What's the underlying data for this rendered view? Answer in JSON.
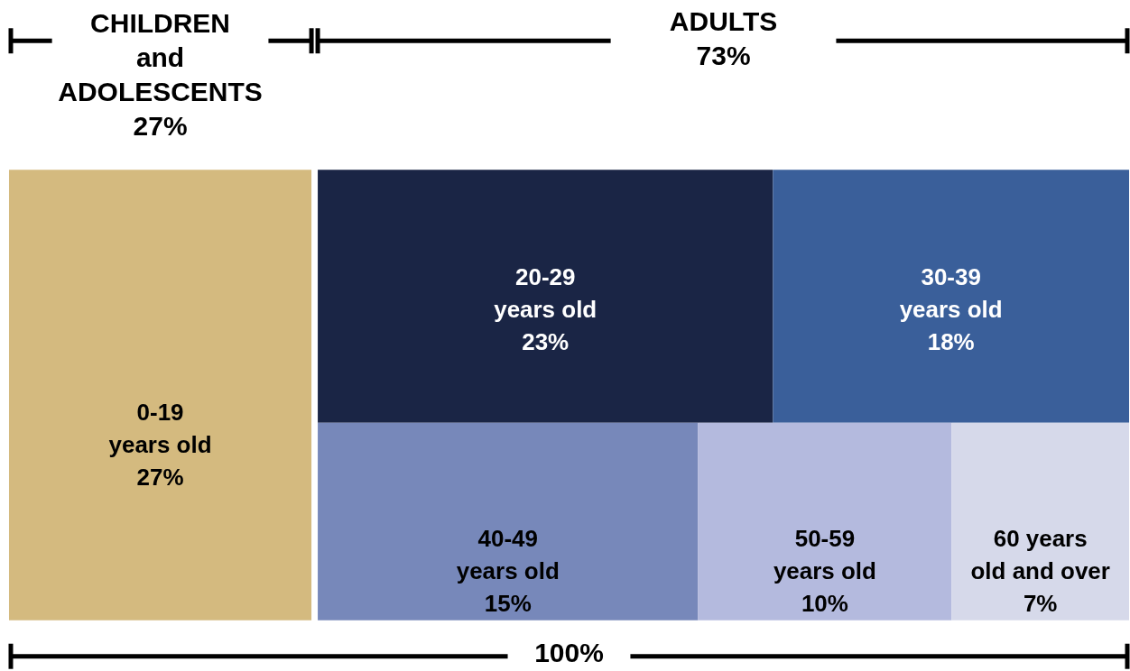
{
  "chart_data": {
    "type": "other",
    "categories": [
      "0-19\nyears old",
      "20-29\nyears old",
      "30-39\nyears old",
      "40-49\nyears old",
      "50-59\nyears old",
      "60 years\nold and over"
    ],
    "values": [
      27,
      23,
      18,
      15,
      10,
      7
    ],
    "value_labels": [
      "27%",
      "23%",
      "18%",
      "15%",
      "10%",
      "7%"
    ],
    "colors": [
      "#d4ba7f",
      "#1a2545",
      "#3a5f9a",
      "#7788ba",
      "#b4bade",
      "#d6d9ea"
    ],
    "annotations": [
      "CHILDREN\nand\nADOLESCENTS\n27%",
      "ADULTS\n73%",
      "100%"
    ]
  }
}
